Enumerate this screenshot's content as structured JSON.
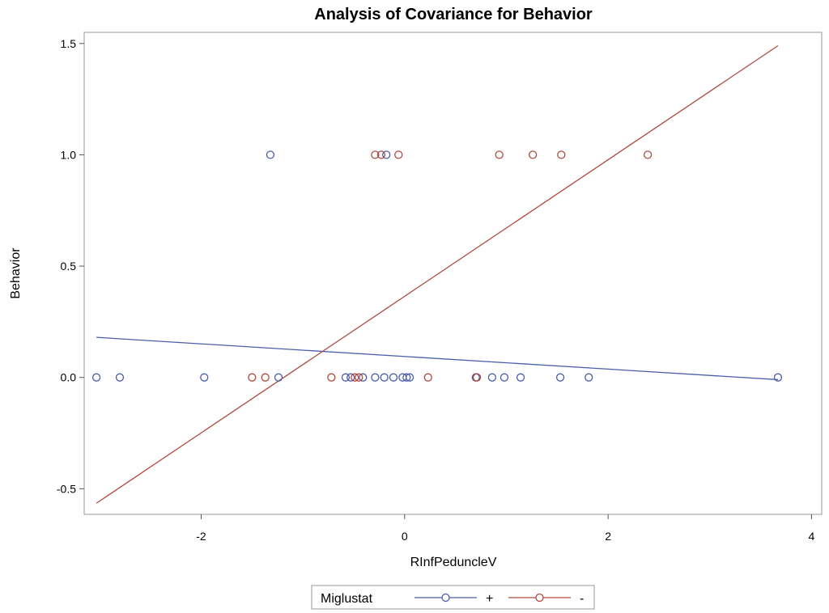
{
  "chart_data": {
    "type": "scatter",
    "title": "Analysis of Covariance for Behavior",
    "xlabel": "RInfPeduncleV",
    "ylabel": "Behavior",
    "xlim": [
      -3.15,
      4.1
    ],
    "ylim": [
      -0.615,
      1.55
    ],
    "xticks": [
      -2,
      0,
      2,
      4
    ],
    "yticks": [
      -0.5,
      0.0,
      0.5,
      1.0,
      1.5
    ],
    "xtick_labels": [
      "-2",
      "0",
      "2",
      "4"
    ],
    "ytick_labels": [
      "-0.5",
      "0.0",
      "0.5",
      "1.0",
      "1.5"
    ],
    "grid": false,
    "legend": {
      "position": "bottom",
      "title": "Miglustat"
    },
    "series": [
      {
        "name": "+",
        "color": "#4B5EA8",
        "points": [
          {
            "x": -3.03,
            "y": 0
          },
          {
            "x": -2.8,
            "y": 0
          },
          {
            "x": -1.97,
            "y": 0
          },
          {
            "x": -1.24,
            "y": 0
          },
          {
            "x": -0.58,
            "y": 0
          },
          {
            "x": -0.53,
            "y": 0
          },
          {
            "x": -0.41,
            "y": 0
          },
          {
            "x": -0.29,
            "y": 0
          },
          {
            "x": -0.2,
            "y": 0
          },
          {
            "x": -0.11,
            "y": 0
          },
          {
            "x": -0.02,
            "y": 0
          },
          {
            "x": 0.02,
            "y": 0
          },
          {
            "x": 0.05,
            "y": 0
          },
          {
            "x": 0.7,
            "y": 0
          },
          {
            "x": 0.86,
            "y": 0
          },
          {
            "x": 0.98,
            "y": 0
          },
          {
            "x": 1.14,
            "y": 0
          },
          {
            "x": 1.53,
            "y": 0
          },
          {
            "x": 1.81,
            "y": 0
          },
          {
            "x": 3.67,
            "y": 0
          },
          {
            "x": -1.32,
            "y": 1
          },
          {
            "x": -0.18,
            "y": 1
          }
        ],
        "fit_line": {
          "x": [
            -3.03,
            3.67
          ],
          "y": [
            0.18,
            -0.01
          ]
        }
      },
      {
        "name": "-",
        "color": "#B0493F",
        "points": [
          {
            "x": -1.5,
            "y": 0
          },
          {
            "x": -1.37,
            "y": 0
          },
          {
            "x": -0.72,
            "y": 0
          },
          {
            "x": -0.49,
            "y": 0
          },
          {
            "x": -0.45,
            "y": 0
          },
          {
            "x": 0.23,
            "y": 0
          },
          {
            "x": 0.71,
            "y": 0
          },
          {
            "x": -0.29,
            "y": 1
          },
          {
            "x": -0.23,
            "y": 1
          },
          {
            "x": -0.06,
            "y": 1
          },
          {
            "x": 0.93,
            "y": 1
          },
          {
            "x": 1.26,
            "y": 1
          },
          {
            "x": 1.54,
            "y": 1
          },
          {
            "x": 2.39,
            "y": 1
          }
        ],
        "fit_line": {
          "x": [
            -3.03,
            3.67
          ],
          "y": [
            -0.565,
            1.49
          ]
        }
      }
    ]
  }
}
